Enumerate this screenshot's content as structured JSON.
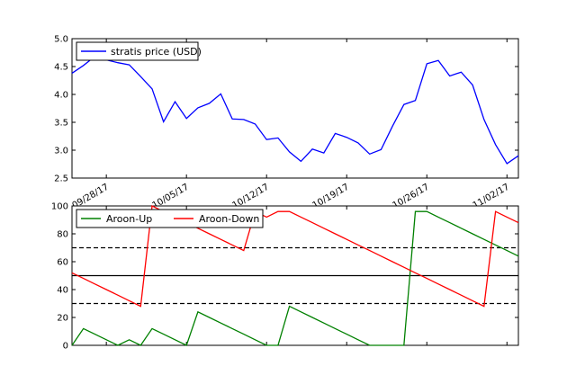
{
  "chart_data": [
    {
      "type": "line",
      "dates": [
        "09/25/17",
        "09/26/17",
        "09/27/17",
        "09/28/17",
        "09/29/17",
        "09/30/17",
        "10/01/17",
        "10/02/17",
        "10/03/17",
        "10/04/17",
        "10/05/17",
        "10/06/17",
        "10/07/17",
        "10/08/17",
        "10/09/17",
        "10/10/17",
        "10/11/17",
        "10/12/17",
        "10/13/17",
        "10/14/17",
        "10/15/17",
        "10/16/17",
        "10/17/17",
        "10/18/17",
        "10/19/17",
        "10/20/17",
        "10/21/17",
        "10/22/17",
        "10/23/17",
        "10/24/17",
        "10/25/17",
        "10/26/17",
        "10/27/17",
        "10/28/17",
        "10/29/17",
        "10/30/17",
        "10/31/17",
        "11/01/17",
        "11/02/17",
        "11/03/17"
      ],
      "xticks": [
        "09/28/17",
        "10/05/17",
        "10/12/17",
        "10/19/17",
        "10/26/17",
        "11/02/17"
      ],
      "series": [
        {
          "name": "stratis price (USD)",
          "color": "#0000ff",
          "values": [
            4.38,
            4.52,
            4.68,
            4.62,
            4.57,
            4.53,
            4.32,
            4.1,
            3.51,
            3.87,
            3.57,
            3.76,
            3.84,
            4.01,
            3.56,
            3.55,
            3.47,
            3.19,
            3.22,
            2.97,
            2.8,
            3.02,
            2.95,
            3.3,
            3.23,
            3.13,
            2.93,
            3.01,
            3.43,
            3.82,
            3.89,
            4.55,
            4.61,
            4.33,
            4.4,
            4.17,
            3.55,
            3.1,
            2.76,
            2.9
          ]
        }
      ],
      "ylim": [
        2.5,
        5.0
      ],
      "yticks": [
        "2.5",
        "3.0",
        "3.5",
        "4.0",
        "4.5",
        "5.0"
      ],
      "legend": "upper-left",
      "grid": false
    },
    {
      "type": "line",
      "dates_ref": "same as top panel",
      "series": [
        {
          "name": "Aroon-Up",
          "color": "#008000",
          "values": [
            0,
            12,
            8,
            4,
            0,
            4,
            0,
            12,
            8,
            4,
            0,
            24,
            20,
            16,
            12,
            8,
            4,
            0,
            0,
            28,
            24,
            20,
            16,
            12,
            8,
            4,
            0,
            0,
            0,
            0,
            96,
            96,
            92,
            88,
            84,
            80,
            76,
            72,
            68,
            64
          ]
        },
        {
          "name": "Aroon-Down",
          "color": "#ff0000",
          "values": [
            52,
            48,
            44,
            40,
            36,
            32,
            28,
            100,
            96,
            92,
            88,
            84,
            80,
            76,
            72,
            68,
            96,
            92,
            96,
            96,
            92,
            88,
            84,
            80,
            76,
            72,
            68,
            64,
            60,
            56,
            52,
            48,
            44,
            40,
            36,
            32,
            28,
            96,
            92,
            88
          ]
        }
      ],
      "reference_lines": [
        {
          "value": 70,
          "style": "dashed"
        },
        {
          "value": 50,
          "style": "solid"
        },
        {
          "value": 30,
          "style": "dashed"
        }
      ],
      "ylim": [
        0,
        100
      ],
      "yticks": [
        "0",
        "20",
        "40",
        "60",
        "80",
        "100"
      ],
      "legend": "upper-left",
      "grid": false
    }
  ]
}
